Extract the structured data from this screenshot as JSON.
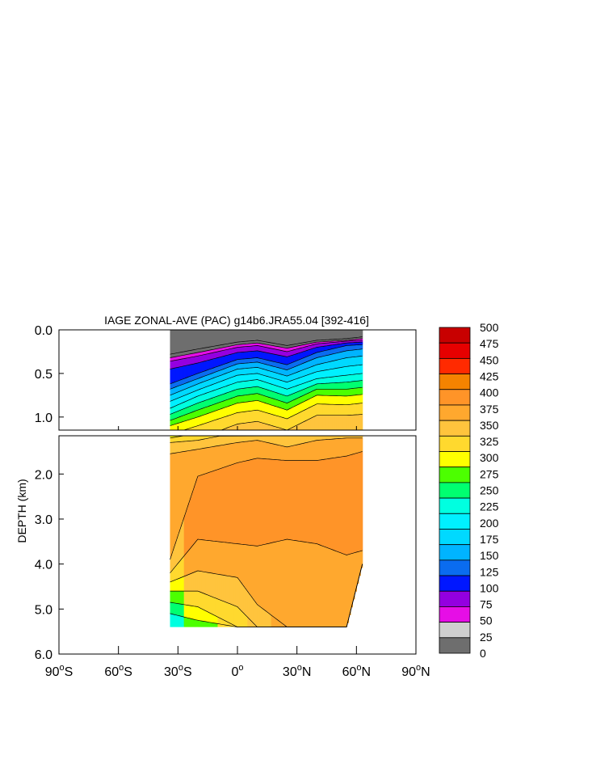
{
  "chart_data": {
    "type": "heatmap",
    "subtype": "filled-contour",
    "title": "IAGE ZONAL-AVE (PAC) g14b6.JRA55.04 [392-416]",
    "ylabel": "DEPTH (km)",
    "xlabel": "",
    "xlim": [
      -90,
      90
    ],
    "ylim": [
      6.0,
      0.0
    ],
    "upper_panel": {
      "depth_range": [
        0.0,
        1.15
      ],
      "yticks": [
        0.0,
        0.5,
        1.0
      ],
      "ytick_labels": [
        "0.0",
        "0.5",
        "1.0"
      ]
    },
    "lower_panel": {
      "depth_range": [
        1.15,
        6.0
      ],
      "yticks": [
        2.0,
        3.0,
        4.0,
        5.0,
        6.0
      ],
      "ytick_labels": [
        "2.0",
        "3.0",
        "4.0",
        "5.0",
        "6.0"
      ]
    },
    "xticks": [
      -90,
      -60,
      -30,
      0,
      30,
      60,
      90
    ],
    "xtick_labels": [
      {
        "num": "90",
        "sup": "o",
        "dir": "S"
      },
      {
        "num": "60",
        "sup": "o",
        "dir": "S"
      },
      {
        "num": "30",
        "sup": "o",
        "dir": "S"
      },
      {
        "num": "0",
        "sup": "o",
        "dir": ""
      },
      {
        "num": "30",
        "sup": "o",
        "dir": "N"
      },
      {
        "num": "60",
        "sup": "o",
        "dir": "N"
      },
      {
        "num": "90",
        "sup": "o",
        "dir": "N"
      }
    ],
    "data_lat_range": [
      -34,
      63
    ],
    "colorbar": {
      "levels": [
        0,
        25,
        50,
        75,
        100,
        125,
        150,
        175,
        200,
        225,
        250,
        275,
        300,
        325,
        350,
        375,
        400,
        425,
        450,
        475,
        500
      ],
      "labels": [
        "500",
        "475",
        "450",
        "425",
        "400",
        "375",
        "350",
        "325",
        "300",
        "275",
        "250",
        "225",
        "200",
        "175",
        "150",
        "125",
        "100",
        "75",
        "50",
        "25",
        "0"
      ],
      "colors": [
        "#6e6e6e",
        "#cfcfcf",
        "#e60ee6",
        "#9400e0",
        "#0017ff",
        "#0a6cf0",
        "#00b4ff",
        "#00d9ff",
        "#00f0ff",
        "#00ffe0",
        "#00ff70",
        "#4cff00",
        "#ffff00",
        "#ffd92e",
        "#ffc43d",
        "#ffa82e",
        "#ff9428",
        "#f58300",
        "#ff2a00",
        "#e60000",
        "#c80000"
      ]
    },
    "profiles": [
      {
        "lat": -34,
        "levels": [
          0,
          0.28,
          0,
          0.32,
          50,
          0.36,
          75,
          0.45,
          100,
          0.62,
          125,
          0.68,
          150,
          0.75,
          175,
          0.82,
          200,
          0.9,
          225,
          0.97,
          250,
          1.04,
          275,
          1.1,
          300,
          1.2,
          325,
          1.3,
          350,
          1.55,
          375,
          3.9,
          350,
          4.2,
          325,
          4.4,
          300,
          4.6,
          275,
          4.85,
          250,
          5.1,
          225,
          5.4
        ]
      },
      {
        "lat": -20,
        "levels": [
          0,
          0.22,
          0,
          0.26,
          50,
          0.3,
          75,
          0.38,
          100,
          0.5,
          125,
          0.56,
          150,
          0.62,
          175,
          0.69,
          200,
          0.76,
          225,
          0.84,
          250,
          0.92,
          275,
          1.0,
          300,
          1.1,
          325,
          1.25,
          350,
          1.45,
          375,
          2.05,
          400,
          3.45,
          375,
          4.15,
          350,
          4.6,
          325,
          4.95,
          300,
          5.25,
          275,
          5.4
        ]
      },
      {
        "lat": 0,
        "levels": [
          0,
          0.14,
          0,
          0.17,
          50,
          0.2,
          75,
          0.26,
          100,
          0.34,
          125,
          0.39,
          150,
          0.45,
          175,
          0.52,
          200,
          0.6,
          225,
          0.68,
          250,
          0.76,
          275,
          0.84,
          300,
          0.95,
          325,
          1.08,
          350,
          1.3,
          375,
          1.75,
          400,
          3.55,
          375,
          4.3,
          350,
          4.95,
          325,
          5.4
        ]
      },
      {
        "lat": 10,
        "levels": [
          0,
          0.12,
          0,
          0.15,
          50,
          0.18,
          75,
          0.24,
          100,
          0.32,
          125,
          0.37,
          150,
          0.43,
          175,
          0.5,
          200,
          0.57,
          225,
          0.65,
          250,
          0.73,
          275,
          0.81,
          300,
          0.92,
          325,
          1.05,
          350,
          1.25,
          375,
          1.65,
          400,
          3.6,
          375,
          4.9,
          350,
          5.4
        ]
      },
      {
        "lat": 25,
        "levels": [
          0,
          0.18,
          0,
          0.21,
          50,
          0.25,
          75,
          0.31,
          100,
          0.4,
          125,
          0.46,
          150,
          0.53,
          175,
          0.6,
          200,
          0.68,
          225,
          0.76,
          250,
          0.84,
          275,
          0.92,
          300,
          1.02,
          325,
          1.15,
          350,
          1.4,
          375,
          1.7,
          400,
          3.45,
          375,
          5.4
        ]
      },
      {
        "lat": 40,
        "levels": [
          0,
          0.12,
          0,
          0.14,
          50,
          0.16,
          75,
          0.2,
          100,
          0.26,
          125,
          0.32,
          150,
          0.4,
          175,
          0.48,
          200,
          0.56,
          225,
          0.62,
          250,
          0.68,
          275,
          0.75,
          300,
          0.85,
          325,
          0.98,
          350,
          1.25,
          375,
          1.7,
          400,
          3.55,
          375,
          5.4
        ]
      },
      {
        "lat": 55,
        "levels": [
          0,
          0.1,
          0,
          0.12,
          50,
          0.13,
          75,
          0.15,
          100,
          0.18,
          125,
          0.24,
          150,
          0.32,
          175,
          0.42,
          200,
          0.52,
          225,
          0.6,
          250,
          0.68,
          275,
          0.76,
          300,
          0.86,
          325,
          0.98,
          350,
          1.2,
          375,
          1.6,
          400,
          3.8,
          375,
          5.4
        ]
      },
      {
        "lat": 63,
        "levels": [
          0,
          0.08,
          0,
          0.1,
          50,
          0.12,
          75,
          0.14,
          100,
          0.17,
          125,
          0.22,
          150,
          0.3,
          175,
          0.4,
          200,
          0.5,
          225,
          0.58,
          250,
          0.66,
          275,
          0.74,
          300,
          0.84,
          325,
          0.97,
          350,
          1.2,
          375,
          1.5,
          400,
          3.7,
          375,
          4.0
        ]
      }
    ]
  }
}
